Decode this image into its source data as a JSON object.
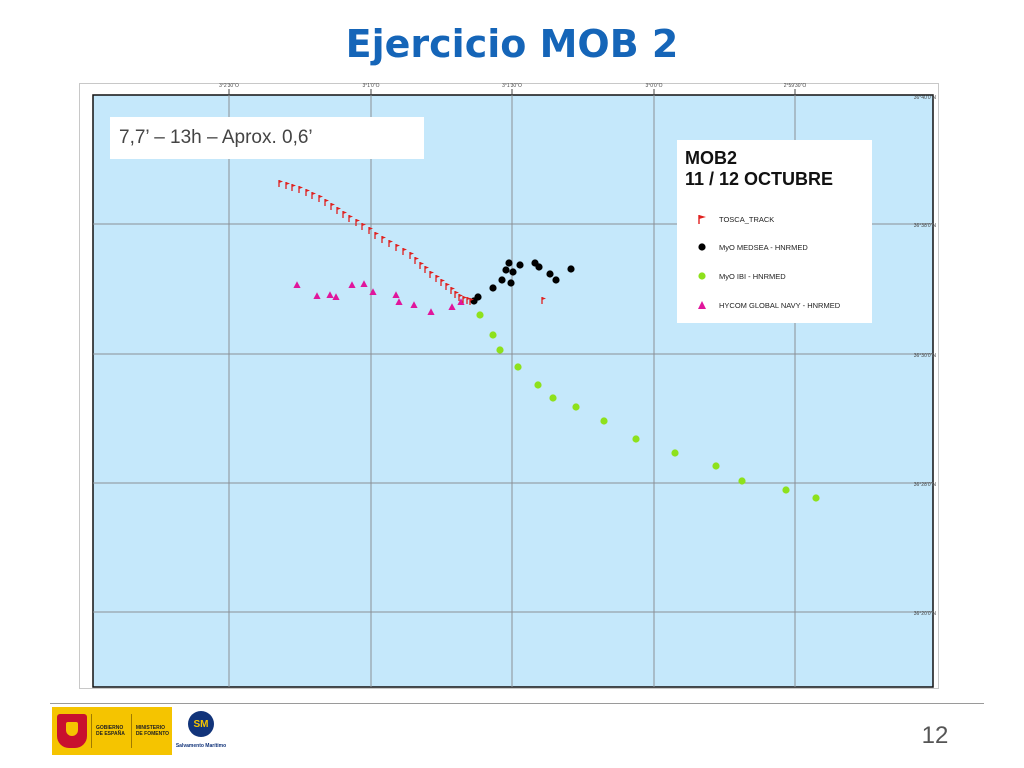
{
  "slide": {
    "title": "Ejercicio MOB 2",
    "annotation": "7,7’ – 13h – Aprox. 0,6’",
    "page_number": "12"
  },
  "map": {
    "background_color": "#c5e8fb",
    "grid_color": "#8a8f94",
    "top_labels": [
      "3°2'30\"O",
      "3°1'0\"O",
      "3°1'30\"O",
      "3°0'0\"O",
      "2°59'30\"O"
    ],
    "right_labels": [
      "36°40'0\"N",
      "36°38'0\"N",
      "36°30'0\"N",
      "36°28'0\"N",
      "36°20'0\"N"
    ]
  },
  "legend": {
    "title_line1": "MOB2",
    "title_line2": "11 / 12  OCTUBRE",
    "items": [
      {
        "label": "TOSCA_TRACK",
        "color": "#e0201e",
        "symbol": "flag-icon"
      },
      {
        "label": "MyO MEDSEA - HNRMED",
        "color": "#000000",
        "symbol": "dot-icon"
      },
      {
        "label": "MyO IBI - HNRMED",
        "color": "#8ee11c",
        "symbol": "dot-icon"
      },
      {
        "label": "HYCOM GLOBAL NAVY - HNRMED",
        "color": "#e0169c",
        "symbol": "triangle-icon"
      }
    ]
  },
  "footer": {
    "gov_line1": "GOBIERNO",
    "gov_line2": "DE ESPAÑA",
    "ministry_line1": "MINISTERIO",
    "ministry_line2": "DE FOMENTO",
    "sm_emblem": "SM",
    "sm_label": "Salvamento Marítimo"
  }
}
